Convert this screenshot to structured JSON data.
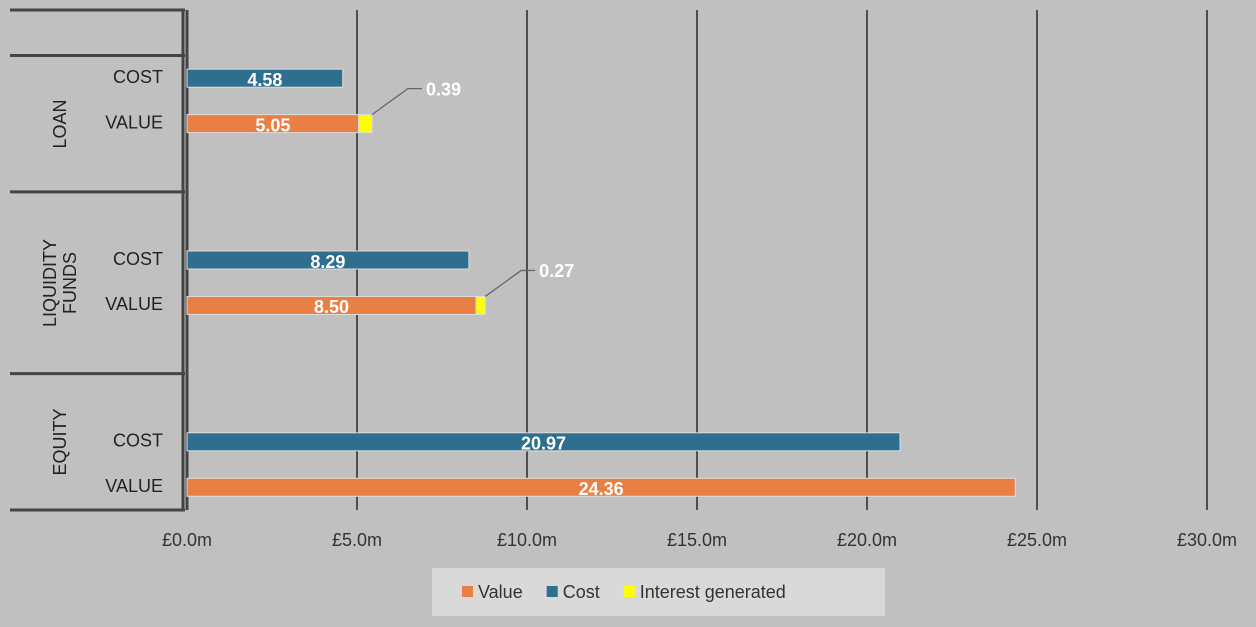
{
  "chart_data": {
    "type": "bar",
    "orientation": "horizontal",
    "stacked": true,
    "groups": [
      "LOAN",
      "LIQUIDITY FUNDS",
      "EQUITY"
    ],
    "categories": [
      "COST",
      "VALUE",
      "COST",
      "VALUE",
      "COST",
      "VALUE"
    ],
    "series": [
      {
        "name": "Value",
        "color": "#e97f45",
        "values": [
          null,
          5.05,
          null,
          8.5,
          null,
          24.36
        ],
        "value_labels": [
          null,
          "5.05",
          null,
          "8.50",
          null,
          "24.36"
        ]
      },
      {
        "name": "Cost",
        "color": "#2e6e8e",
        "values": [
          4.58,
          null,
          8.29,
          null,
          20.97,
          null
        ]
      },
      {
        "name": "Interest generated",
        "color": "#ffff00",
        "values": [
          null,
          0.39,
          null,
          0.27,
          null,
          null
        ]
      }
    ],
    "xlim": [
      0,
      30
    ],
    "xticks": [
      {
        "value": 0,
        "label": "£0.0m"
      },
      {
        "value": 5,
        "label": "£5.0m"
      },
      {
        "value": 10,
        "label": "£10.0m"
      },
      {
        "value": 15,
        "label": "£15.0m"
      },
      {
        "value": 20,
        "label": "£20.0m"
      },
      {
        "value": 25,
        "label": "£25.0m"
      },
      {
        "value": 30,
        "label": "£30.0m"
      }
    ],
    "grid": true,
    "legend": "bottom"
  }
}
